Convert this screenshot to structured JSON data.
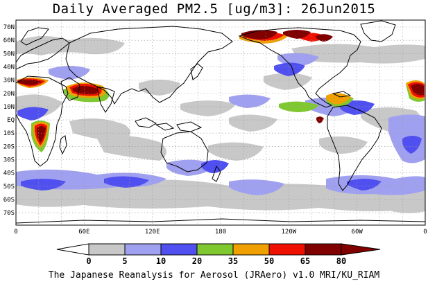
{
  "title": "Daily Averaged PM2.5 [ug/m3]: 26Jun2015",
  "footer": "The Japanese Reanalysis for Aerosol (JRAero) v1.0 MRI/KU_RIAM",
  "map": {
    "lat_labels": [
      "70N",
      "60N",
      "50N",
      "40N",
      "30N",
      "20N",
      "10N",
      "EQ",
      "10S",
      "20S",
      "30S",
      "40S",
      "50S",
      "60S",
      "70S"
    ],
    "lon_labels": [
      "0",
      "60E",
      "120E",
      "180",
      "120W",
      "60W",
      "0"
    ]
  },
  "colorbar": {
    "colors": [
      "#ffffff",
      "#c8c8c8",
      "#a0a0f0",
      "#5050f0",
      "#80c830",
      "#f0a000",
      "#f01000",
      "#800000"
    ],
    "labels": [
      "0",
      "5",
      "10",
      "20",
      "35",
      "50",
      "65",
      "80"
    ],
    "units": "ug/m3"
  },
  "colors": {
    "coastline": "#000000",
    "grid": "#999999",
    "background": "#ffffff"
  }
}
